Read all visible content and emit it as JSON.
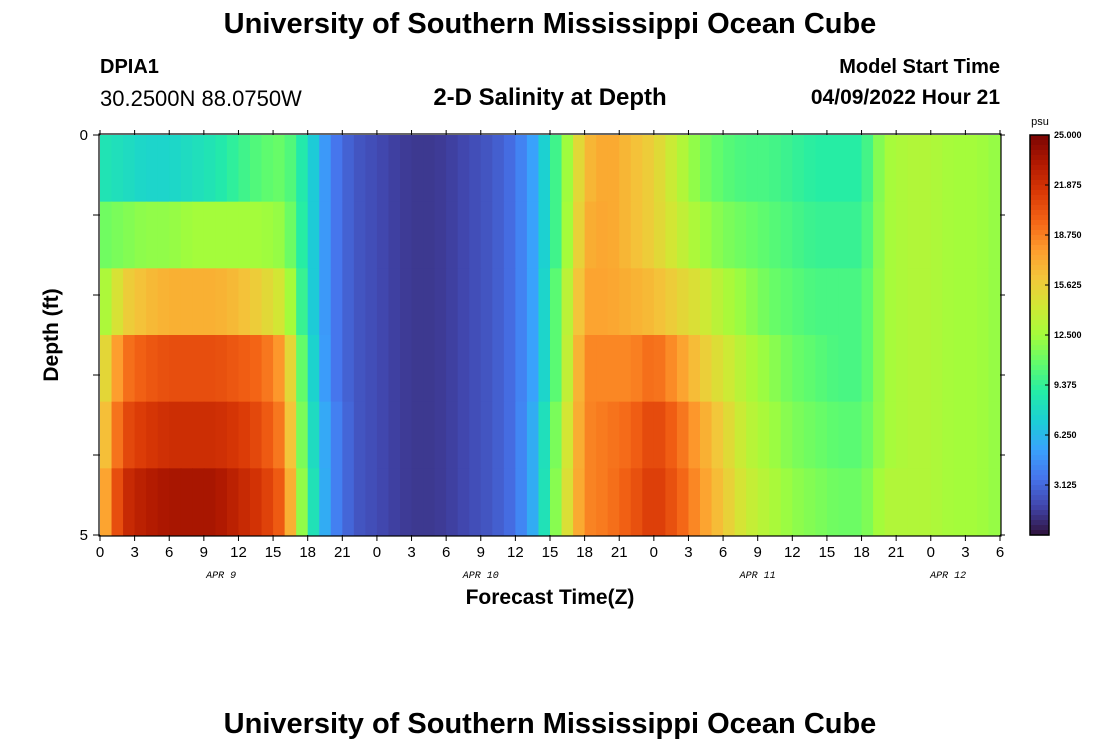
{
  "header": {
    "title": "University of Southern Mississippi Ocean Cube",
    "station_id": "DPIA1",
    "station_location": "30.2500N  88.0750W",
    "plot_title": "2-D Salinity at Depth",
    "model_start_label": "Model Start Time",
    "model_start_value": "04/09/2022 Hour 21"
  },
  "footer": {
    "title": "University of Southern Mississippi Ocean Cube"
  },
  "chart_data": {
    "type": "heatmap",
    "title": "2-D Salinity at Depth",
    "xlabel": "Forecast Time(Z)",
    "ylabel": "Depth (ft)",
    "x_tick_labels": [
      "0",
      "3",
      "6",
      "9",
      "12",
      "15",
      "18",
      "21",
      "0",
      "3",
      "6",
      "9",
      "12",
      "15",
      "18",
      "21",
      "0",
      "3",
      "6",
      "9",
      "12",
      "15",
      "18",
      "21",
      "0",
      "3",
      "6"
    ],
    "x_day_labels": [
      "APR 9",
      "APR 10",
      "APR 11",
      "APR 12"
    ],
    "x_range_hours": [
      0,
      78
    ],
    "y_tick_labels": [
      "0",
      "5"
    ],
    "y_range_ft": [
      0,
      5
    ],
    "depth_levels_ft": [
      0,
      1,
      2,
      3,
      4,
      5
    ],
    "colorbar": {
      "unit": "psu",
      "min": 0,
      "max": 25.0,
      "tick_labels": [
        "25.000",
        "21.875",
        "18.750",
        "15.625",
        "12.500",
        "9.375",
        "6.250",
        "3.125"
      ],
      "colors": [
        "#30123b",
        "#4145ab",
        "#4675ed",
        "#39a2fc",
        "#1bcfd4",
        "#24eca6",
        "#61fc6c",
        "#a4fc3b",
        "#d1e834",
        "#f3c63a",
        "#fe9b2d",
        "#f36315",
        "#d93806",
        "#b11901",
        "#7a0403"
      ]
    },
    "series": [
      {
        "depth_ft": 0,
        "hours": [
          0,
          2,
          4,
          6,
          8,
          10,
          12,
          14,
          16,
          18,
          20,
          22,
          24,
          26,
          28,
          30,
          32,
          34,
          36,
          38,
          40,
          42,
          44,
          46,
          48,
          50,
          52,
          54,
          56,
          58,
          60,
          62,
          64,
          66,
          68,
          70,
          72,
          74,
          76,
          78
        ],
        "values": [
          8.5,
          8.0,
          7.5,
          7.5,
          8.0,
          8.5,
          9.5,
          10.5,
          11.0,
          8.0,
          4.0,
          2.5,
          2.0,
          1.5,
          1.3,
          1.5,
          2.0,
          2.5,
          3.5,
          6.0,
          11.0,
          16.5,
          17.5,
          16.5,
          15.5,
          13.5,
          11.5,
          10.5,
          10.0,
          10.0,
          9.5,
          9.0,
          9.0,
          9.0,
          12.5,
          13.0,
          13.0,
          12.5,
          12.5,
          12.0
        ]
      },
      {
        "depth_ft": 1,
        "hours": [
          0,
          2,
          4,
          6,
          8,
          10,
          12,
          14,
          16,
          18,
          20,
          22,
          24,
          26,
          28,
          30,
          32,
          34,
          36,
          38,
          40,
          42,
          44,
          46,
          48,
          50,
          52,
          54,
          56,
          58,
          60,
          62,
          64,
          66,
          68,
          70,
          72,
          74,
          76,
          78
        ],
        "values": [
          11.0,
          11.5,
          12.0,
          12.0,
          12.5,
          12.5,
          12.5,
          12.5,
          12.0,
          8.0,
          4.0,
          2.5,
          2.0,
          1.5,
          1.3,
          1.5,
          2.0,
          2.5,
          3.5,
          6.0,
          11.0,
          17.0,
          17.5,
          16.5,
          15.5,
          14.0,
          12.5,
          11.5,
          11.0,
          10.5,
          10.0,
          9.5,
          9.5,
          9.5,
          12.5,
          13.0,
          13.0,
          12.5,
          12.5,
          12.0
        ]
      },
      {
        "depth_ft": 2,
        "hours": [
          0,
          2,
          4,
          6,
          8,
          10,
          12,
          14,
          16,
          18,
          20,
          22,
          24,
          26,
          28,
          30,
          32,
          34,
          36,
          38,
          40,
          42,
          44,
          46,
          48,
          50,
          52,
          54,
          56,
          58,
          60,
          62,
          64,
          66,
          68,
          70,
          72,
          74,
          76,
          78
        ],
        "values": [
          12.0,
          15.5,
          16.5,
          17.0,
          17.0,
          17.0,
          16.5,
          15.5,
          14.0,
          8.0,
          4.0,
          2.5,
          2.0,
          1.5,
          1.3,
          1.5,
          2.0,
          2.5,
          3.5,
          6.0,
          12.0,
          17.5,
          17.5,
          17.0,
          16.5,
          15.5,
          14.5,
          13.0,
          12.0,
          11.0,
          10.5,
          10.0,
          10.0,
          10.0,
          12.5,
          13.0,
          13.0,
          12.5,
          12.5,
          12.0
        ]
      },
      {
        "depth_ft": 3,
        "hours": [
          0,
          2,
          4,
          6,
          8,
          10,
          12,
          14,
          16,
          18,
          20,
          22,
          24,
          26,
          28,
          30,
          32,
          34,
          36,
          38,
          40,
          42,
          44,
          46,
          48,
          50,
          52,
          54,
          56,
          58,
          60,
          62,
          64,
          66,
          68,
          70,
          72,
          74,
          76,
          78
        ],
        "values": [
          14.0,
          19.0,
          20.0,
          20.5,
          20.5,
          20.5,
          20.0,
          19.5,
          17.5,
          8.5,
          4.0,
          2.5,
          2.0,
          1.5,
          1.3,
          1.5,
          2.0,
          2.5,
          3.5,
          6.0,
          12.0,
          18.5,
          18.5,
          18.5,
          19.5,
          18.0,
          16.0,
          14.5,
          13.0,
          12.0,
          11.0,
          10.5,
          10.0,
          10.0,
          12.5,
          13.0,
          13.0,
          12.5,
          12.5,
          12.0
        ]
      },
      {
        "depth_ft": 4,
        "hours": [
          0,
          2,
          4,
          6,
          8,
          10,
          12,
          14,
          16,
          18,
          20,
          22,
          24,
          26,
          28,
          30,
          32,
          34,
          36,
          38,
          40,
          42,
          44,
          46,
          48,
          50,
          52,
          54,
          56,
          58,
          60,
          62,
          64,
          66,
          68,
          70,
          72,
          74,
          76,
          78
        ],
        "values": [
          15.0,
          20.5,
          21.5,
          22.0,
          22.0,
          22.0,
          21.5,
          20.5,
          18.5,
          9.0,
          4.5,
          2.5,
          2.0,
          1.5,
          1.3,
          1.5,
          2.0,
          2.5,
          3.5,
          6.5,
          13.0,
          18.5,
          19.0,
          19.5,
          21.0,
          19.5,
          17.5,
          15.5,
          13.5,
          12.5,
          11.5,
          11.0,
          10.5,
          10.5,
          12.5,
          13.0,
          13.0,
          12.5,
          12.5,
          12.0
        ]
      },
      {
        "depth_ft": 5,
        "hours": [
          0,
          2,
          4,
          6,
          8,
          10,
          12,
          14,
          16,
          18,
          20,
          22,
          24,
          26,
          28,
          30,
          32,
          34,
          36,
          38,
          40,
          42,
          44,
          46,
          48,
          50,
          52,
          54,
          56,
          58,
          60,
          62,
          64,
          66,
          68,
          70,
          72,
          74,
          76,
          78
        ],
        "values": [
          16.0,
          22.0,
          23.0,
          23.5,
          23.5,
          23.5,
          22.5,
          21.5,
          19.5,
          9.5,
          4.5,
          2.5,
          2.0,
          1.5,
          1.3,
          1.5,
          2.0,
          2.5,
          3.5,
          6.5,
          13.5,
          18.5,
          19.0,
          20.0,
          21.5,
          20.0,
          18.0,
          16.0,
          14.0,
          13.0,
          12.0,
          11.5,
          11.0,
          11.0,
          13.0,
          13.0,
          13.0,
          12.5,
          12.5,
          12.0
        ]
      }
    ],
    "legend": "right colorbar"
  }
}
